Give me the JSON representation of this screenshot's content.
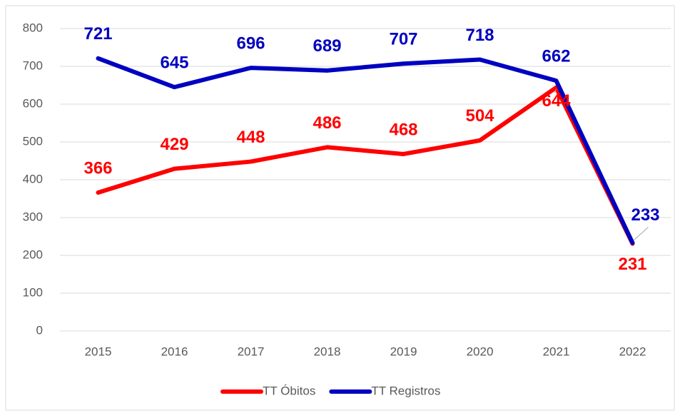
{
  "chart_data": {
    "type": "line",
    "categories": [
      "2015",
      "2016",
      "2017",
      "2018",
      "2019",
      "2020",
      "2021",
      "2022"
    ],
    "series": [
      {
        "name": "TT Óbitos",
        "color": "#ff0000",
        "values": [
          366,
          429,
          448,
          486,
          468,
          504,
          644,
          231
        ]
      },
      {
        "name": "TT Registros",
        "color": "#0000c0",
        "values": [
          721,
          645,
          696,
          689,
          707,
          718,
          662,
          233
        ]
      }
    ],
    "ylim": [
      0,
      800
    ],
    "yticks": [
      0,
      100,
      200,
      300,
      400,
      500,
      600,
      700,
      800
    ],
    "grid": true,
    "legend": "bottom"
  }
}
